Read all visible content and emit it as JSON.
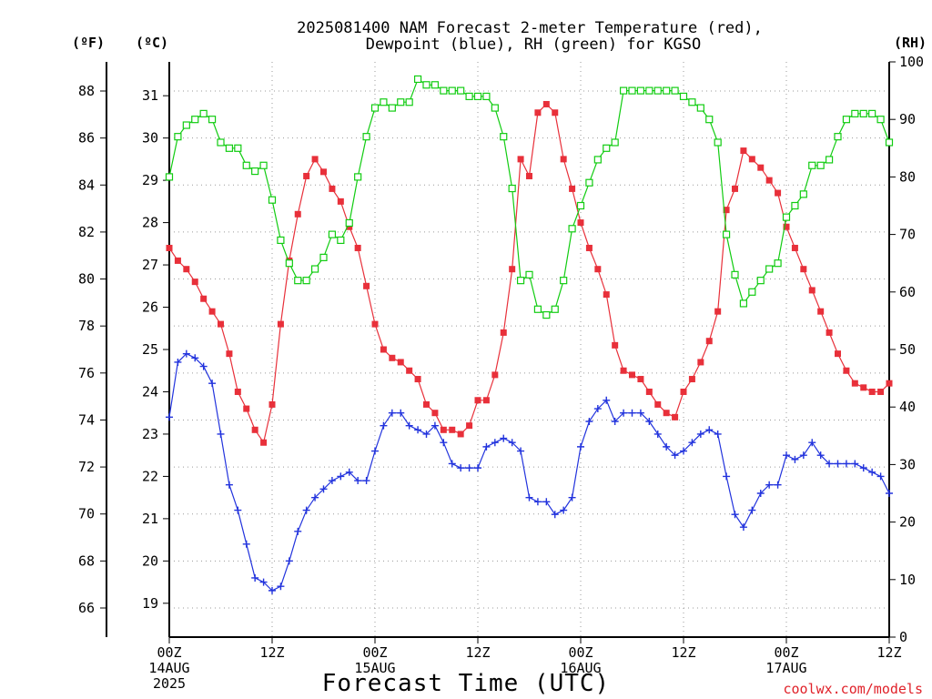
{
  "title_lines": [
    "2025081400 NAM Forecast 2-meter Temperature (red),",
    "Dewpoint (blue), RH (green) for KGSO"
  ],
  "units": {
    "fahrenheit": "(ºF)",
    "celsius": "(ºC)",
    "rh": "(RH)"
  },
  "xlabel": "Forecast Time (UTC)",
  "credit": "coolwx.com/models",
  "colors": {
    "temperature": "#e8303a",
    "dewpoint": "#2233dd",
    "rh": "#11cc11",
    "grid": "#9a9a9a"
  },
  "chart_data": {
    "type": "line",
    "title": "2025081400 NAM Forecast 2-meter Temperature (red), Dewpoint (blue), RH (green) for KGSO",
    "xlabel": "Forecast Time (UTC)",
    "x_unit": "forecast hour from 2025-08-14 00Z",
    "xlim": [
      0,
      84
    ],
    "x_ticks": [
      {
        "hour": 0,
        "lines": [
          "00Z",
          "14AUG",
          "2025"
        ]
      },
      {
        "hour": 12,
        "lines": [
          "12Z"
        ]
      },
      {
        "hour": 24,
        "lines": [
          "00Z",
          "15AUG"
        ]
      },
      {
        "hour": 36,
        "lines": [
          "12Z"
        ]
      },
      {
        "hour": 48,
        "lines": [
          "00Z",
          "16AUG"
        ]
      },
      {
        "hour": 60,
        "lines": [
          "12Z"
        ]
      },
      {
        "hour": 72,
        "lines": [
          "00Z",
          "17AUG"
        ]
      },
      {
        "hour": 84,
        "lines": [
          "12Z"
        ]
      }
    ],
    "left_axis_f": {
      "label": "(ºF)",
      "ticks": [
        66,
        68,
        70,
        72,
        74,
        76,
        78,
        80,
        82,
        84,
        86,
        88
      ]
    },
    "left_axis_c": {
      "label": "(ºC)",
      "ylim": [
        18.2,
        31.8
      ],
      "ticks": [
        19,
        20,
        21,
        22,
        23,
        24,
        25,
        26,
        27,
        28,
        29,
        30,
        31
      ]
    },
    "right_axis_rh": {
      "label": "(RH)",
      "ylim": [
        0,
        100
      ],
      "ticks": [
        0,
        10,
        20,
        30,
        40,
        50,
        60,
        70,
        80,
        90,
        100
      ]
    },
    "grid": true,
    "series": [
      {
        "name": "Temperature",
        "unit": "C",
        "marker": "filled-square",
        "x": [
          0,
          1,
          2,
          3,
          4,
          5,
          6,
          7,
          8,
          9,
          10,
          11,
          12,
          13,
          14,
          15,
          16,
          17,
          18,
          19,
          20,
          21,
          22,
          23,
          24,
          25,
          26,
          27,
          28,
          29,
          30,
          31,
          32,
          33,
          34,
          35,
          36,
          37,
          38,
          39,
          40,
          41,
          42,
          43,
          44,
          45,
          46,
          47,
          48,
          49,
          50,
          51,
          52,
          53,
          54,
          55,
          56,
          57,
          58,
          59,
          60,
          61,
          62,
          63,
          64,
          65,
          66,
          67,
          68,
          69,
          70,
          71,
          72,
          73,
          74,
          75,
          76,
          77,
          78,
          79,
          80,
          81,
          82,
          83,
          84
        ],
        "values": [
          27.4,
          27.1,
          26.9,
          26.6,
          26.2,
          25.9,
          25.6,
          24.9,
          24.0,
          23.6,
          23.1,
          22.8,
          23.7,
          25.6,
          27.1,
          28.2,
          29.1,
          29.5,
          29.2,
          28.8,
          28.5,
          27.9,
          27.4,
          26.5,
          25.6,
          25.0,
          24.8,
          24.7,
          24.5,
          24.3,
          23.7,
          23.5,
          23.1,
          23.1,
          23.0,
          23.2,
          23.8,
          23.8,
          24.4,
          25.4,
          26.9,
          29.5,
          29.1,
          30.6,
          30.8,
          30.6,
          29.5,
          28.8,
          28.0,
          27.4,
          26.9,
          26.3,
          25.1,
          24.5,
          24.4,
          24.3,
          24.0,
          23.7,
          23.5,
          23.4,
          24.0,
          24.3,
          24.7,
          25.2,
          25.9,
          28.3,
          28.8,
          29.7,
          29.5,
          29.3,
          29.0,
          28.7,
          27.9,
          27.4,
          26.9,
          26.4,
          25.9,
          25.4,
          24.9,
          24.5,
          24.2,
          24.1,
          24.0,
          24.0,
          24.2
        ]
      },
      {
        "name": "Dewpoint",
        "unit": "C",
        "marker": "plus",
        "x": [
          0,
          1,
          2,
          3,
          4,
          5,
          6,
          7,
          8,
          9,
          10,
          11,
          12,
          13,
          14,
          15,
          16,
          17,
          18,
          19,
          20,
          21,
          22,
          23,
          24,
          25,
          26,
          27,
          28,
          29,
          30,
          31,
          32,
          33,
          34,
          35,
          36,
          37,
          38,
          39,
          40,
          41,
          42,
          43,
          44,
          45,
          46,
          47,
          48,
          49,
          50,
          51,
          52,
          53,
          54,
          55,
          56,
          57,
          58,
          59,
          60,
          61,
          62,
          63,
          64,
          65,
          66,
          67,
          68,
          69,
          70,
          71,
          72,
          73,
          74,
          75,
          76,
          77,
          78,
          79,
          80,
          81,
          82,
          83,
          84
        ],
        "values": [
          23.4,
          24.7,
          24.9,
          24.8,
          24.6,
          24.2,
          23.0,
          21.8,
          21.2,
          20.4,
          19.6,
          19.5,
          19.3,
          19.4,
          20.0,
          20.7,
          21.2,
          21.5,
          21.7,
          21.9,
          22.0,
          22.1,
          21.9,
          21.9,
          22.6,
          23.2,
          23.5,
          23.5,
          23.2,
          23.1,
          23.0,
          23.2,
          22.8,
          22.3,
          22.2,
          22.2,
          22.2,
          22.7,
          22.8,
          22.9,
          22.8,
          22.6,
          21.5,
          21.4,
          21.4,
          21.1,
          21.2,
          21.5,
          22.7,
          23.3,
          23.6,
          23.8,
          23.3,
          23.5,
          23.5,
          23.5,
          23.3,
          23.0,
          22.7,
          22.5,
          22.6,
          22.8,
          23.0,
          23.1,
          23.0,
          22.0,
          21.1,
          20.8,
          21.2,
          21.6,
          21.8,
          21.8,
          22.5,
          22.4,
          22.5,
          22.8,
          22.5,
          22.3,
          22.3,
          22.3,
          22.3,
          22.2,
          22.1,
          22.0,
          21.6
        ]
      },
      {
        "name": "RH",
        "unit": "%",
        "marker": "open-square",
        "x": [
          0,
          1,
          2,
          3,
          4,
          5,
          6,
          7,
          8,
          9,
          10,
          11,
          12,
          13,
          14,
          15,
          16,
          17,
          18,
          19,
          20,
          21,
          22,
          23,
          24,
          25,
          26,
          27,
          28,
          29,
          30,
          31,
          32,
          33,
          34,
          35,
          36,
          37,
          38,
          39,
          40,
          41,
          42,
          43,
          44,
          45,
          46,
          47,
          48,
          49,
          50,
          51,
          52,
          53,
          54,
          55,
          56,
          57,
          58,
          59,
          60,
          61,
          62,
          63,
          64,
          65,
          66,
          67,
          68,
          69,
          70,
          71,
          72,
          73,
          74,
          75,
          76,
          77,
          78,
          79,
          80,
          81,
          82,
          83,
          84
        ],
        "values": [
          80,
          87,
          89,
          90,
          91,
          90,
          86,
          85,
          85,
          82,
          81,
          82,
          76,
          69,
          65,
          62,
          62,
          64,
          66,
          70,
          69,
          72,
          80,
          87,
          92,
          93,
          92,
          93,
          93,
          97,
          96,
          96,
          95,
          95,
          95,
          94,
          94,
          94,
          92,
          87,
          78,
          62,
          63,
          57,
          56,
          57,
          62,
          71,
          75,
          79,
          83,
          85,
          86,
          95,
          95,
          95,
          95,
          95,
          95,
          95,
          94,
          93,
          92,
          90,
          86,
          70,
          63,
          58,
          60,
          62,
          64,
          65,
          73,
          75,
          77,
          82,
          82,
          83,
          87,
          90,
          91,
          91,
          91,
          90,
          86
        ]
      }
    ]
  }
}
